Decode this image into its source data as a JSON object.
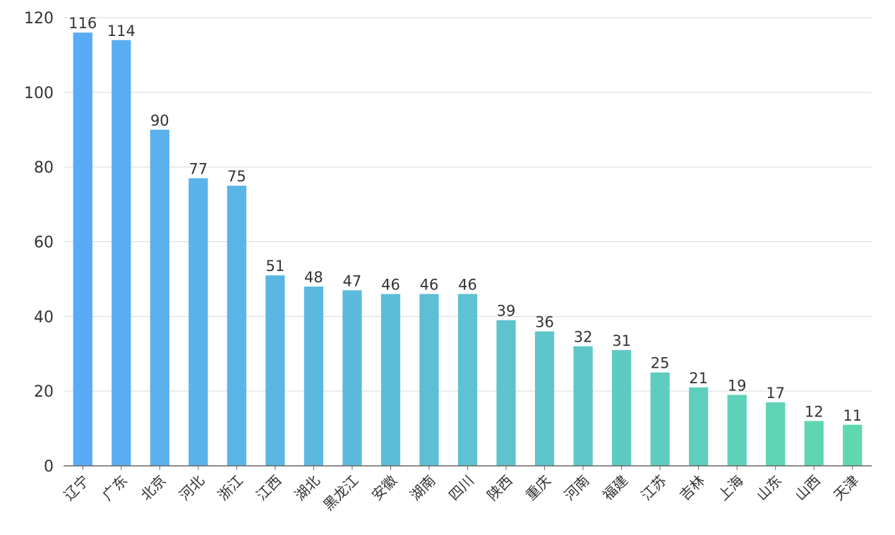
{
  "chart_data": {
    "type": "bar",
    "categories": [
      "辽宁",
      "广东",
      "北京",
      "河北",
      "浙江",
      "江西",
      "湖北",
      "黑龙江",
      "安徽",
      "湖南",
      "四川",
      "陕西",
      "重庆",
      "河南",
      "福建",
      "江苏",
      "吉林",
      "上海",
      "山东",
      "山西",
      "天津"
    ],
    "values": [
      116,
      114,
      90,
      77,
      75,
      51,
      48,
      47,
      46,
      46,
      46,
      39,
      36,
      32,
      31,
      25,
      21,
      19,
      17,
      12,
      11
    ],
    "title": "",
    "xlabel": "",
    "ylabel": "",
    "ylim": [
      0,
      120
    ],
    "yticks": [
      0,
      20,
      40,
      60,
      80,
      100,
      120
    ],
    "grid": true,
    "data_labels": true,
    "colors": {
      "bar_start": "#5aabf5",
      "bar_end": "#5fd8ae",
      "grid": "#d9d9d9",
      "axis": "#666666",
      "text": "#333333"
    }
  }
}
